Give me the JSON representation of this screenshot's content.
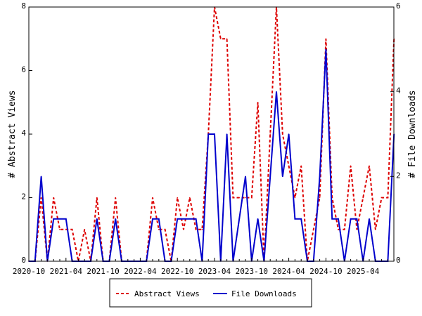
{
  "chart_data": {
    "type": "line",
    "title": "",
    "x_tick_labels": [
      "2020-10",
      "2021-04",
      "2021-10",
      "2022-04",
      "2022-10",
      "2023-04",
      "2023-10",
      "2024-04",
      "2024-10",
      "2025-04"
    ],
    "x_start": "2020-10",
    "x_interval": "month",
    "ylabel_left": "# Abstract Views",
    "ylabel_right": "# File Downloads",
    "ylim_left": [
      0,
      8
    ],
    "ylim_right": [
      0,
      6
    ],
    "yticks_left": [
      "0",
      "2",
      "4",
      "6",
      "8"
    ],
    "yticks_right": [
      "0",
      "2",
      "4",
      "6"
    ],
    "grid": false,
    "legend_position": "bottom-center",
    "series": [
      {
        "name": "Abstract Views",
        "axis": "left",
        "color": "#dd0000",
        "style": "dashed",
        "values": [
          0,
          0,
          2,
          0,
          2,
          1,
          1,
          1,
          0,
          1,
          0,
          2,
          0,
          0,
          2,
          0,
          0,
          0,
          0,
          0,
          2,
          1,
          1,
          0,
          2,
          1,
          2,
          1,
          1,
          4,
          8,
          7,
          7,
          2,
          2,
          2,
          2,
          5,
          0,
          4,
          8,
          4,
          3,
          2,
          3,
          0,
          1,
          2,
          7,
          2,
          1,
          1,
          3,
          1,
          2,
          3,
          1,
          2,
          2,
          7
        ]
      },
      {
        "name": "File Downloads",
        "axis": "right",
        "color": "#0000cc",
        "style": "solid",
        "values": [
          0,
          0,
          2,
          0,
          1,
          1,
          1,
          0,
          0,
          0,
          0,
          1,
          0,
          0,
          1,
          0,
          0,
          0,
          0,
          0,
          1,
          1,
          0,
          0,
          1,
          1,
          1,
          1,
          0,
          3,
          3,
          0,
          3,
          0,
          1,
          2,
          0,
          1,
          0,
          2,
          4,
          2,
          3,
          1,
          1,
          0,
          0,
          2,
          5,
          1,
          1,
          0,
          1,
          1,
          0,
          1,
          0,
          0,
          0,
          3
        ]
      }
    ]
  }
}
